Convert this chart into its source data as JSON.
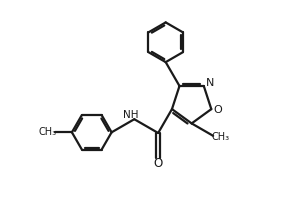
{
  "background_color": "#ffffff",
  "line_color": "#1a1a1a",
  "line_width": 1.6,
  "figsize": [
    2.84,
    2.22
  ],
  "dpi": 100,
  "xlim": [
    0,
    10
  ],
  "ylim": [
    0,
    8
  ]
}
